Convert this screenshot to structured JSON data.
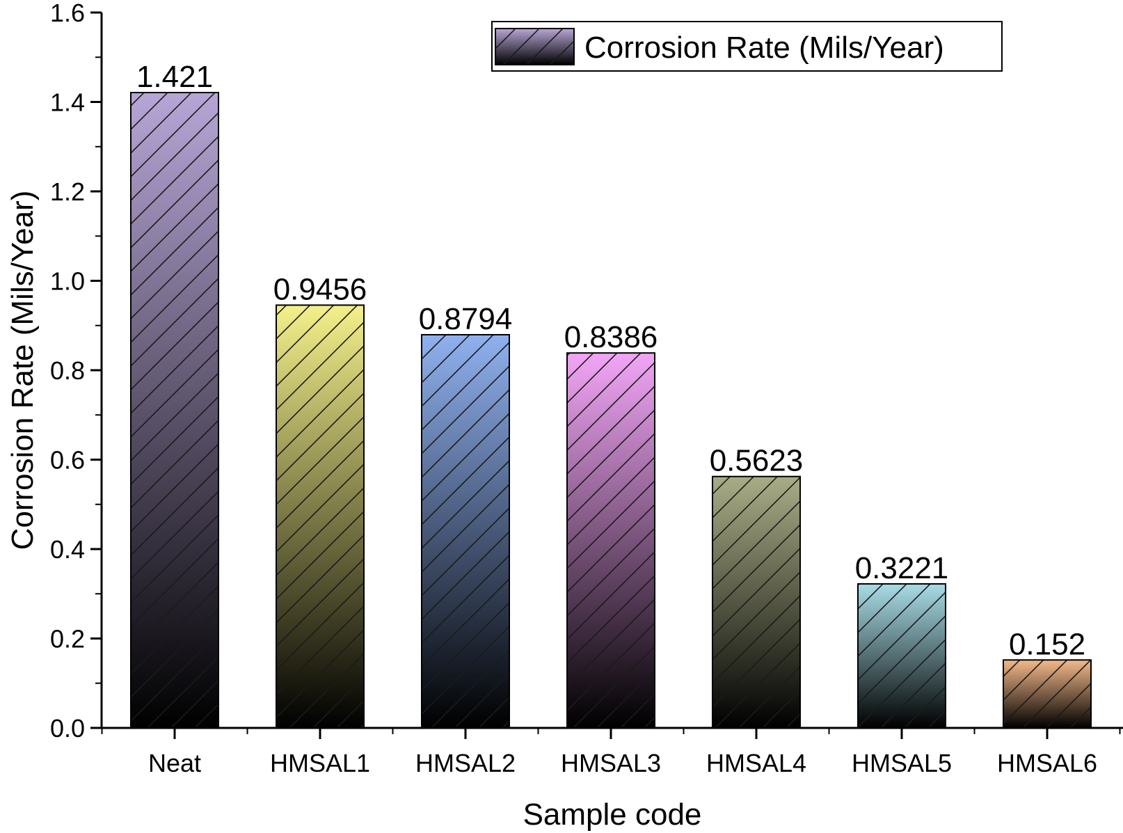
{
  "chart_data": {
    "type": "bar",
    "categories": [
      "Neat",
      "HMSAL1",
      "HMSAL2",
      "HMSAL3",
      "HMSAL4",
      "HMSAL5",
      "HMSAL6"
    ],
    "series": [
      {
        "name": "Corrosion Rate (Mils/Year)",
        "values": [
          1.421,
          0.9456,
          0.8794,
          0.8386,
          0.5623,
          0.3221,
          0.152
        ]
      }
    ],
    "value_labels": [
      "1.421",
      "0.9456",
      "0.8794",
      "0.8386",
      "0.5623",
      "0.3221",
      "0.152"
    ],
    "bar_colors": [
      "#b7a6d6",
      "#f4f08a",
      "#8fb1ef",
      "#f2a6f6",
      "#a9ad86",
      "#a8dce6",
      "#f4b98a"
    ],
    "bar_fill_style": "vertical gradient from color (top) to black (bottom), diagonal hatching",
    "legend_swatch_color": "#b7a6d6",
    "title": "",
    "xlabel": "Sample code",
    "ylabel": "Corrosion Rate (Mils/Year)",
    "ylim": [
      0,
      1.6
    ],
    "yticks": [
      "0.0",
      "0.2",
      "0.4",
      "0.6",
      "0.8",
      "1.0",
      "1.2",
      "1.4",
      "1.6"
    ],
    "grid": false,
    "legend_position": "top-right"
  }
}
